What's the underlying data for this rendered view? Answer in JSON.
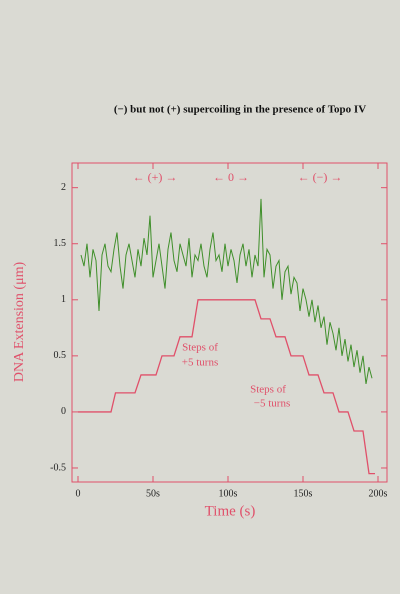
{
  "chart_data": {
    "type": "line",
    "title": "(−) but not (+) supercoiling in the presence of Topo IV",
    "x_label": "Time (s)",
    "y_label": "DNA Extension (μm)",
    "xlim": [
      -4,
      206
    ],
    "ylim": [
      -0.625,
      2.22
    ],
    "xticks": [
      0,
      {
        "value": 50,
        "label": "50s"
      },
      {
        "value": 100,
        "label": "100s"
      },
      {
        "value": 150,
        "label": "150s"
      },
      {
        "value": 200,
        "label": "200s"
      }
    ],
    "yticks": [
      -0.5,
      0,
      0.5,
      1,
      1.5,
      2
    ],
    "annotations": [
      "← (+) →",
      "← 0 →",
      "← (−) →",
      "Steps of",
      "+5 turns",
      "Steps of",
      "−5 turns"
    ],
    "series": [
      {
        "color": "#3f8f2a",
        "x": [
          2,
          4,
          6,
          8,
          10,
          12,
          14,
          16,
          18,
          20,
          22,
          24,
          26,
          28,
          30,
          32,
          34,
          36,
          38,
          40,
          42,
          44,
          46,
          48,
          50,
          52,
          54,
          56,
          58,
          60,
          62,
          64,
          66,
          68,
          70,
          72,
          74,
          76,
          78,
          80,
          82,
          84,
          86,
          88,
          90,
          92,
          94,
          96,
          98,
          100,
          102,
          104,
          106,
          108,
          110,
          112,
          114,
          116,
          118,
          120,
          122,
          124,
          126,
          128,
          130,
          132,
          134,
          136,
          138,
          140,
          142,
          144,
          146,
          148,
          150,
          152,
          154,
          156,
          158,
          160,
          162,
          164,
          166,
          168,
          170,
          172,
          174,
          176,
          178,
          180,
          182,
          184,
          186,
          188,
          190,
          192,
          194,
          196
        ],
        "values": [
          1.4,
          1.3,
          1.5,
          1.2,
          1.45,
          1.35,
          0.9,
          1.4,
          1.5,
          1.3,
          1.25,
          1.45,
          1.6,
          1.3,
          1.1,
          1.4,
          1.5,
          1.35,
          1.2,
          1.45,
          1.3,
          1.55,
          1.4,
          1.75,
          1.2,
          1.35,
          1.5,
          1.3,
          1.1,
          1.45,
          1.6,
          1.35,
          1.25,
          1.5,
          1.4,
          1.3,
          1.55,
          1.2,
          1.4,
          1.35,
          1.5,
          1.3,
          1.2,
          1.45,
          1.6,
          1.35,
          1.4,
          1.25,
          1.5,
          1.3,
          1.45,
          1.35,
          1.15,
          1.4,
          1.5,
          1.3,
          1.45,
          1.2,
          1.4,
          1.3,
          1.9,
          1.2,
          1.45,
          1.4,
          1.1,
          1.3,
          1.35,
          1.0,
          1.25,
          1.3,
          1.05,
          1.2,
          1.15,
          0.9,
          1.1,
          1.0,
          0.85,
          1.0,
          0.8,
          0.95,
          0.75,
          0.85,
          0.6,
          0.8,
          0.7,
          0.55,
          0.75,
          0.5,
          0.65,
          0.45,
          0.6,
          0.4,
          0.55,
          0.35,
          0.5,
          0.25,
          0.4,
          0.3
        ]
      },
      {
        "color": "#e0506a",
        "x": [
          0,
          22,
          25,
          38,
          42,
          52,
          56,
          64,
          68,
          76,
          80,
          118,
          122,
          128,
          132,
          138,
          142,
          150,
          154,
          160,
          164,
          170,
          174,
          180,
          184,
          190,
          194,
          198
        ],
        "values": [
          0,
          0,
          0.17,
          0.17,
          0.33,
          0.33,
          0.5,
          0.5,
          0.67,
          0.67,
          1,
          1,
          0.83,
          0.83,
          0.67,
          0.67,
          0.5,
          0.5,
          0.33,
          0.33,
          0.17,
          0.17,
          0,
          0,
          -0.17,
          -0.17,
          -0.55,
          -0.55
        ]
      }
    ]
  }
}
